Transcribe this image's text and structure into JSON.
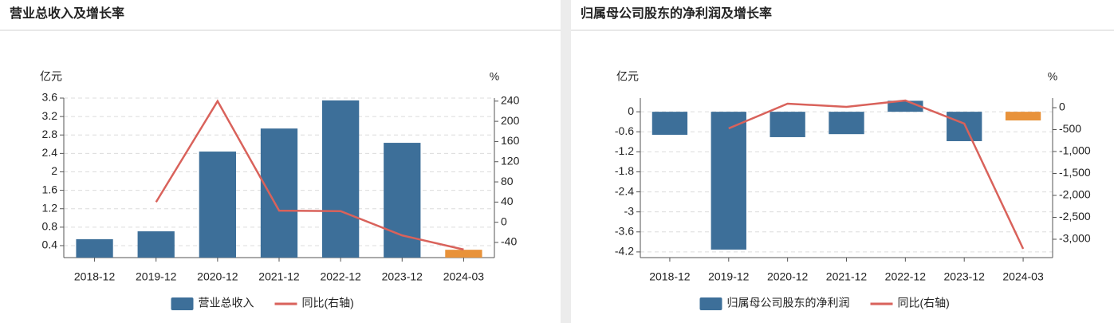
{
  "chart_data": [
    {
      "type": "combo",
      "title": "营业总收入及增长率",
      "y_unit": "亿元",
      "y2_unit": "%",
      "categories": [
        "2018-12",
        "2019-12",
        "2020-12",
        "2021-12",
        "2022-12",
        "2023-12",
        "2024-03"
      ],
      "series": [
        {
          "name": "营业总收入",
          "type": "bar",
          "color": "#3d6f99",
          "colors": [
            "#3d6f99",
            "#3d6f99",
            "#3d6f99",
            "#3d6f99",
            "#3d6f99",
            "#3d6f99",
            "#e8923a"
          ],
          "values": [
            0.54,
            0.71,
            2.44,
            2.94,
            3.55,
            2.63,
            0.31
          ]
        },
        {
          "name": "同比(右轴)",
          "type": "line",
          "color": "#d9625b",
          "axis": "y2",
          "values": [
            null,
            40,
            240,
            23,
            22,
            -26,
            -54
          ]
        }
      ],
      "ylim": [
        0.14,
        3.6
      ],
      "yticks": [
        0.4,
        0.8,
        1.2,
        1.6,
        2,
        2.4,
        2.8,
        3.2,
        3.6
      ],
      "y2lim": [
        -70,
        246
      ],
      "y2ticks": [
        -40,
        0,
        40,
        80,
        120,
        160,
        200,
        240
      ],
      "grid": true,
      "legend": "bottom"
    },
    {
      "type": "combo",
      "title": "归属母公司股东的净利润及增长率",
      "y_unit": "亿元",
      "y2_unit": "%",
      "categories": [
        "2018-12",
        "2019-12",
        "2020-12",
        "2021-12",
        "2022-12",
        "2023-12",
        "2024-03"
      ],
      "series": [
        {
          "name": "归属母公司股东的净利润",
          "type": "bar",
          "color": "#3d6f99",
          "colors": [
            "#3d6f99",
            "#3d6f99",
            "#3d6f99",
            "#3d6f99",
            "#3d6f99",
            "#3d6f99",
            "#e8923a"
          ],
          "values": [
            -0.69,
            -4.13,
            -0.76,
            -0.67,
            0.33,
            -0.88,
            -0.26
          ]
        },
        {
          "name": "同比(右轴)",
          "type": "line",
          "color": "#d9625b",
          "axis": "y2",
          "values": [
            null,
            -473,
            91,
            18,
            164,
            -364,
            -3218
          ]
        }
      ],
      "ylim": [
        -4.37,
        0.41
      ],
      "yticks": [
        -4.2,
        -3.6,
        -3,
        -2.4,
        -1.8,
        -1.2,
        -0.6,
        0
      ],
      "y2lim": [
        -3418,
        218
      ],
      "y2ticks": [
        {
          "value": -3000,
          "label": "-3,000"
        },
        {
          "value": -2500,
          "label": "-2,500"
        },
        {
          "value": -2000,
          "label": "-2,000"
        },
        {
          "value": -1500,
          "label": "-1,500"
        },
        {
          "value": -1000,
          "label": "-1,000"
        },
        -500,
        0
      ],
      "grid": true,
      "legend": "bottom"
    }
  ]
}
